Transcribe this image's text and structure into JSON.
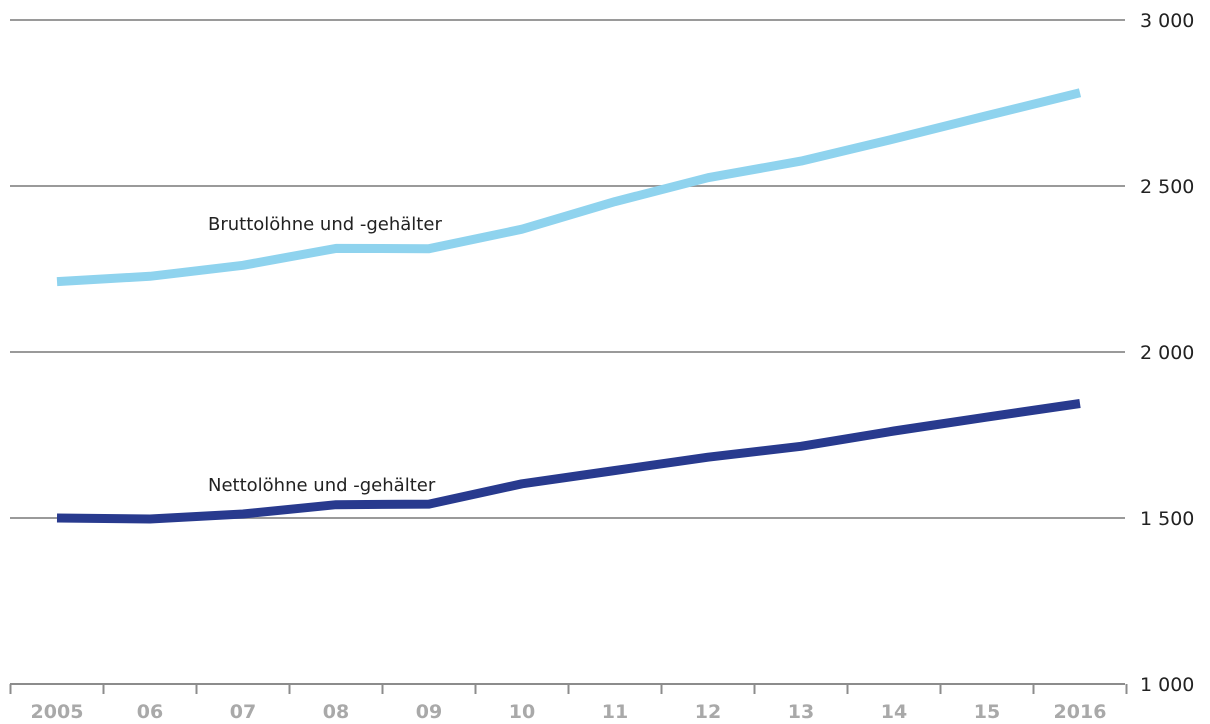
{
  "chart_data": {
    "type": "line",
    "categories": [
      "2005",
      "06",
      "07",
      "08",
      "09",
      "10",
      "11",
      "12",
      "13",
      "14",
      "15",
      "2016"
    ],
    "ylim": [
      1000,
      3000
    ],
    "yticks": [
      {
        "value": 3000,
        "label": "3 000"
      },
      {
        "value": 2500,
        "label": "2 500"
      },
      {
        "value": 2000,
        "label": "2 000"
      },
      {
        "value": 1500,
        "label": "1 500"
      },
      {
        "value": 1000,
        "label": "1 000"
      }
    ],
    "grid": true,
    "series": [
      {
        "name": "Bruttolöhne und -gehälter",
        "color": "#8fd3ee",
        "values": [
          2212,
          2228,
          2261,
          2312,
          2311,
          2370,
          2453,
          2525,
          2575,
          2642,
          2712,
          2781
        ]
      },
      {
        "name": "Nettolöhne und -gehälter",
        "color": "#283a8e",
        "values": [
          1500,
          1497,
          1512,
          1540,
          1542,
          1603,
          1643,
          1683,
          1716,
          1762,
          1804,
          1845
        ]
      }
    ]
  }
}
